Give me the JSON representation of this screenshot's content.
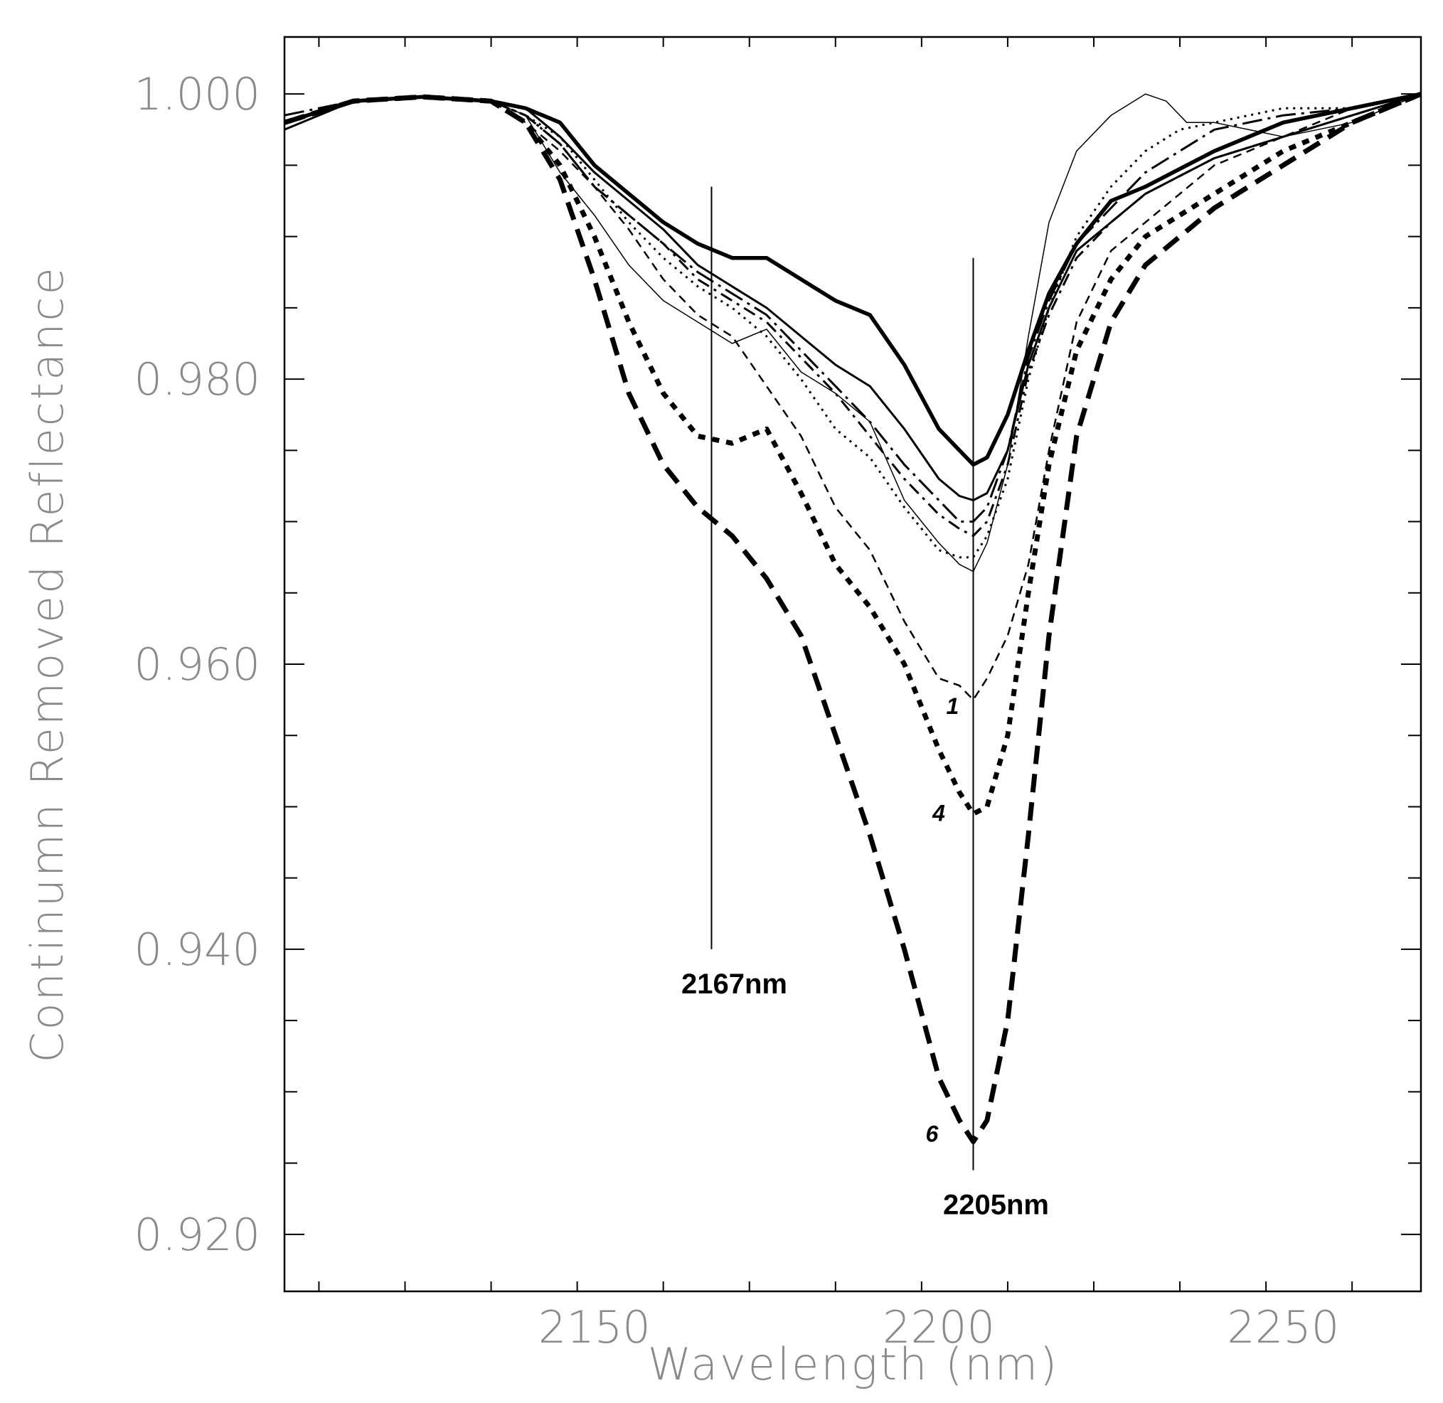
{
  "chart_data": {
    "type": "line",
    "title": "",
    "xlabel": "Wavelength (nm)",
    "ylabel": "Continumn Removed Reflectance",
    "xlim": [
      2105,
      2270
    ],
    "ylim": [
      0.916,
      1.004
    ],
    "x_ticks": [
      2150,
      2200,
      2250
    ],
    "x_tick_labels": [
      "2150",
      "2200",
      "2250"
    ],
    "y_ticks": [
      0.92,
      0.94,
      0.96,
      0.98,
      1.0
    ],
    "y_tick_labels": [
      "0.920",
      "0.940",
      "0.960",
      "0.980",
      "1.000"
    ],
    "grid": false,
    "legend": "none",
    "reference_lines": [
      {
        "x": 2167,
        "label": "2167nm",
        "y_from": 0.94,
        "y_to": 0.9935
      },
      {
        "x": 2205,
        "label": "2205nm",
        "y_from": 0.9245,
        "y_to": 0.9885
      }
    ],
    "curve_labels": [
      {
        "text": "1",
        "x": 2202,
        "y": 0.9565
      },
      {
        "text": "4",
        "x": 2200,
        "y": 0.949
      },
      {
        "text": "6",
        "x": 2199,
        "y": 0.9265
      }
    ],
    "series": [
      {
        "style": "thick-dashed",
        "label": "6",
        "x": [
          2105,
          2115,
          2125,
          2135,
          2140,
          2145,
          2150,
          2155,
          2160,
          2165,
          2170,
          2175,
          2180,
          2185,
          2190,
          2195,
          2200,
          2203,
          2205,
          2207,
          2210,
          2213,
          2216,
          2220,
          2225,
          2230,
          2240,
          2250,
          2260,
          2270
        ],
        "y": [
          0.998,
          0.9995,
          0.9998,
          0.9995,
          0.998,
          0.994,
          0.987,
          0.979,
          0.974,
          0.971,
          0.969,
          0.966,
          0.962,
          0.955,
          0.948,
          0.94,
          0.931,
          0.928,
          0.9265,
          0.928,
          0.935,
          0.948,
          0.962,
          0.976,
          0.984,
          0.988,
          0.992,
          0.995,
          0.998,
          1.0
        ]
      },
      {
        "style": "thick-dotted",
        "label": "4",
        "x": [
          2105,
          2115,
          2125,
          2135,
          2140,
          2145,
          2150,
          2155,
          2160,
          2165,
          2170,
          2175,
          2180,
          2185,
          2190,
          2195,
          2200,
          2203,
          2205,
          2207,
          2210,
          2213,
          2216,
          2220,
          2225,
          2230,
          2240,
          2250,
          2260,
          2270
        ],
        "y": [
          0.998,
          0.9995,
          0.9998,
          0.9995,
          0.998,
          0.995,
          0.99,
          0.984,
          0.979,
          0.976,
          0.9755,
          0.9765,
          0.972,
          0.967,
          0.964,
          0.96,
          0.954,
          0.951,
          0.9495,
          0.95,
          0.955,
          0.965,
          0.974,
          0.982,
          0.987,
          0.99,
          0.993,
          0.996,
          0.998,
          1.0
        ]
      },
      {
        "style": "thin-dashed",
        "label": "1",
        "x": [
          2105,
          2115,
          2125,
          2135,
          2140,
          2145,
          2150,
          2155,
          2160,
          2165,
          2170,
          2175,
          2180,
          2185,
          2190,
          2195,
          2200,
          2203,
          2205,
          2207,
          2210,
          2213,
          2216,
          2220,
          2225,
          2230,
          2240,
          2250,
          2260,
          2270
        ],
        "y": [
          0.998,
          0.9995,
          0.9998,
          0.9995,
          0.998,
          0.996,
          0.9935,
          0.9905,
          0.987,
          0.9845,
          0.983,
          0.9795,
          0.976,
          0.971,
          0.968,
          0.963,
          0.959,
          0.9585,
          0.9575,
          0.959,
          0.962,
          0.967,
          0.975,
          0.984,
          0.989,
          0.991,
          0.995,
          0.997,
          0.999,
          1.0
        ]
      },
      {
        "style": "thin-solid",
        "x": [
          2105,
          2115,
          2125,
          2135,
          2140,
          2145,
          2150,
          2155,
          2160,
          2165,
          2170,
          2175,
          2180,
          2185,
          2190,
          2195,
          2200,
          2203,
          2205,
          2207,
          2210,
          2213,
          2216,
          2220,
          2225,
          2230,
          2233,
          2236,
          2240,
          2250,
          2260,
          2270
        ],
        "y": [
          0.998,
          0.9995,
          0.9998,
          0.9995,
          0.9985,
          0.9945,
          0.9915,
          0.988,
          0.9855,
          0.984,
          0.9825,
          0.9835,
          0.9805,
          0.979,
          0.977,
          0.9715,
          0.9685,
          0.967,
          0.9665,
          0.9685,
          0.974,
          0.983,
          0.991,
          0.996,
          0.9985,
          1.0,
          0.9995,
          0.998,
          0.998,
          0.997,
          0.998,
          1.0
        ]
      },
      {
        "style": "thick-solid",
        "x": [
          2105,
          2115,
          2125,
          2135,
          2140,
          2145,
          2150,
          2155,
          2160,
          2165,
          2170,
          2175,
          2180,
          2185,
          2190,
          2195,
          2200,
          2203,
          2205,
          2207,
          2210,
          2213,
          2216,
          2220,
          2225,
          2230,
          2240,
          2250,
          2260,
          2270
        ],
        "y": [
          0.998,
          0.9995,
          0.9998,
          0.9995,
          0.999,
          0.998,
          0.995,
          0.993,
          0.991,
          0.9895,
          0.9885,
          0.9885,
          0.987,
          0.9855,
          0.9845,
          0.981,
          0.9765,
          0.975,
          0.974,
          0.9745,
          0.9775,
          0.982,
          0.986,
          0.9895,
          0.9925,
          0.9935,
          0.996,
          0.998,
          0.999,
          1.0
        ]
      },
      {
        "style": "solid",
        "x": [
          2105,
          2115,
          2125,
          2135,
          2140,
          2145,
          2150,
          2155,
          2160,
          2165,
          2170,
          2175,
          2180,
          2185,
          2190,
          2195,
          2200,
          2203,
          2205,
          2207,
          2210,
          2213,
          2216,
          2220,
          2225,
          2230,
          2240,
          2250,
          2260,
          2270
        ],
        "y": [
          0.9975,
          0.9995,
          0.9998,
          0.9995,
          0.999,
          0.997,
          0.9945,
          0.9925,
          0.9905,
          0.988,
          0.9865,
          0.985,
          0.983,
          0.981,
          0.9795,
          0.9765,
          0.973,
          0.9718,
          0.9715,
          0.972,
          0.975,
          0.981,
          0.985,
          0.989,
          0.991,
          0.993,
          0.9955,
          0.997,
          0.9985,
          1.0
        ]
      },
      {
        "style": "dash-dot",
        "x": [
          2105,
          2115,
          2125,
          2135,
          2140,
          2145,
          2150,
          2155,
          2160,
          2165,
          2170,
          2175,
          2180,
          2185,
          2190,
          2195,
          2200,
          2203,
          2205,
          2207,
          2210,
          2213,
          2216,
          2220,
          2225,
          2230,
          2240,
          2250,
          2260,
          2270
        ],
        "y": [
          0.998,
          0.9995,
          0.9998,
          0.9995,
          0.9985,
          0.9965,
          0.9935,
          0.9915,
          0.9895,
          0.987,
          0.9855,
          0.984,
          0.9815,
          0.979,
          0.976,
          0.973,
          0.9705,
          0.9695,
          0.969,
          0.97,
          0.974,
          0.9805,
          0.9845,
          0.9885,
          0.991,
          0.993,
          0.9955,
          0.997,
          0.9985,
          1.0
        ]
      },
      {
        "style": "dotted",
        "x": [
          2105,
          2115,
          2125,
          2135,
          2140,
          2145,
          2150,
          2155,
          2160,
          2165,
          2170,
          2175,
          2180,
          2185,
          2190,
          2195,
          2200,
          2203,
          2205,
          2207,
          2210,
          2213,
          2216,
          2220,
          2225,
          2230,
          2235,
          2240,
          2250,
          2260,
          2270
        ],
        "y": [
          0.998,
          0.9995,
          0.9998,
          0.9995,
          0.9985,
          0.997,
          0.994,
          0.991,
          0.9885,
          0.9865,
          0.985,
          0.983,
          0.98,
          0.9765,
          0.9745,
          0.971,
          0.968,
          0.9675,
          0.9675,
          0.969,
          0.973,
          0.98,
          0.985,
          0.99,
          0.9935,
          0.996,
          0.9975,
          0.998,
          0.999,
          0.999,
          1.0
        ]
      },
      {
        "style": "long-dash-dot",
        "x": [
          2105,
          2115,
          2125,
          2135,
          2140,
          2145,
          2150,
          2155,
          2160,
          2165,
          2170,
          2175,
          2180,
          2185,
          2190,
          2195,
          2200,
          2203,
          2205,
          2207,
          2210,
          2213,
          2216,
          2220,
          2225,
          2230,
          2240,
          2250,
          2260,
          2270
        ],
        "y": [
          0.9985,
          0.9995,
          0.9998,
          0.9995,
          0.9985,
          0.9965,
          0.9935,
          0.9915,
          0.9895,
          0.9875,
          0.986,
          0.9845,
          0.982,
          0.9795,
          0.977,
          0.974,
          0.9715,
          0.97,
          0.97,
          0.971,
          0.975,
          0.9815,
          0.9855,
          0.9895,
          0.992,
          0.9945,
          0.9975,
          0.9985,
          0.999,
          1.0
        ]
      }
    ]
  }
}
